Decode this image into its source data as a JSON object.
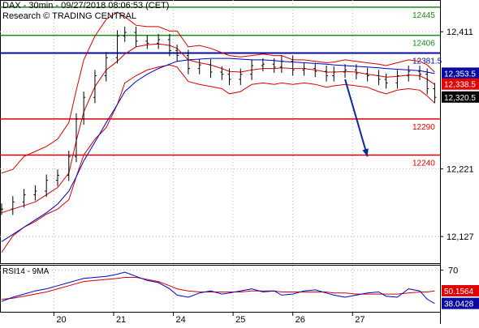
{
  "header": {
    "line1": "DAX - 30min - 09/27/2018 08:06:53 (CET)",
    "line2": "Research © TRADING CENTRAL"
  },
  "colors": {
    "price": "#000000",
    "band": "#d40000",
    "ma_fast": "#d40000",
    "ma_slow": "#0000c8",
    "green_level": "#1a8a1a",
    "blue_level": "#0a0aa0",
    "red_level": "#e00000",
    "arrow": "#0a2a9a",
    "grid": "#b8b8b8",
    "last_badge": "#000000"
  },
  "chart_data": [
    {
      "type": "line",
      "title": "DAX - 30min",
      "ylim": [
        12090,
        12455
      ],
      "x": [
        0,
        3,
        6,
        9,
        12,
        15,
        18,
        20,
        22,
        25,
        28,
        31,
        33,
        36,
        39,
        42,
        45,
        47,
        50,
        53,
        56,
        59,
        61,
        64,
        67,
        70,
        73,
        75,
        78,
        81,
        84,
        87,
        89,
        92,
        95,
        98,
        101,
        103,
        106,
        109,
        112,
        114,
        116
      ],
      "x_ticks": [
        {
          "at": 14,
          "label": "20"
        },
        {
          "at": 30,
          "label": "21"
        },
        {
          "at": 46,
          "label": "24"
        },
        {
          "at": 62,
          "label": "25"
        },
        {
          "at": 78,
          "label": "26"
        },
        {
          "at": 94,
          "label": "27"
        }
      ],
      "y_ticks": [
        12411,
        12221,
        12127
      ],
      "levels": [
        {
          "value": 12445,
          "label": "12445",
          "kind": "green"
        },
        {
          "value": 12406,
          "label": "12406",
          "kind": "green"
        },
        {
          "value": 12381.5,
          "label": "12381.5",
          "kind": "blue"
        },
        {
          "value": 12290,
          "label": "12290",
          "kind": "red"
        },
        {
          "value": 12240,
          "label": "12240",
          "kind": "red"
        }
      ],
      "right_tags": [
        {
          "value": 12353.5,
          "label": "12,353.5",
          "kind": "blue"
        },
        {
          "value": 12338.5,
          "label": "12,338.5",
          "kind": "red"
        },
        {
          "value": 12320.5,
          "label": "12,320.5",
          "kind": "last"
        }
      ],
      "series": [
        {
          "key": "price",
          "values": [
            12165,
            12175,
            12185,
            12190,
            12205,
            12212,
            12238,
            12290,
            12320,
            12350,
            12375,
            12405,
            12410,
            12398,
            12395,
            12400,
            12385,
            12378,
            12360,
            12365,
            12355,
            12352,
            12345,
            12352,
            12364,
            12366,
            12362,
            12370,
            12358,
            12360,
            12356,
            12350,
            12355,
            12358,
            12353,
            12350,
            12345,
            12340,
            12350,
            12356,
            12352,
            12332,
            12320
          ]
        },
        {
          "key": "upper_band",
          "values": [
            12215,
            12220,
            12238,
            12245,
            12252,
            12262,
            12285,
            12330,
            12372,
            12405,
            12428,
            12438,
            12432,
            12420,
            12418,
            12418,
            12412,
            12412,
            12390,
            12392,
            12388,
            12382,
            12378,
            12376,
            12378,
            12380,
            12378,
            12378,
            12372,
            12372,
            12370,
            12368,
            12369,
            12372,
            12370,
            12368,
            12366,
            12364,
            12368,
            12372,
            12370,
            12365,
            12355
          ]
        },
        {
          "key": "lower_band",
          "values": [
            12105,
            12128,
            12140,
            12148,
            12158,
            12165,
            12178,
            12210,
            12240,
            12262,
            12278,
            12310,
            12340,
            12350,
            12358,
            12362,
            12365,
            12362,
            12342,
            12338,
            12335,
            12332,
            12325,
            12328,
            12338,
            12340,
            12338,
            12340,
            12338,
            12340,
            12338,
            12334,
            12336,
            12338,
            12336,
            12334,
            12328,
            12325,
            12330,
            12332,
            12330,
            12322,
            12312
          ]
        },
        {
          "key": "ma_fast",
          "values": [
            12160,
            12165,
            12170,
            12175,
            12185,
            12195,
            12215,
            12260,
            12300,
            12335,
            12358,
            12370,
            12380,
            12390,
            12393,
            12394,
            12392,
            12388,
            12372,
            12368,
            12365,
            12360,
            12356,
            12355,
            12358,
            12360,
            12360,
            12361,
            12360,
            12360,
            12358,
            12355,
            12355,
            12356,
            12355,
            12352,
            12350,
            12348,
            12349,
            12351,
            12350,
            12345,
            12338
          ]
        },
        {
          "key": "ma_slow",
          "values": [
            12120,
            12130,
            12140,
            12150,
            12160,
            12172,
            12190,
            12210,
            12232,
            12258,
            12285,
            12310,
            12328,
            12342,
            12352,
            12360,
            12366,
            12370,
            12372,
            12373,
            12374,
            12374,
            12374,
            12373,
            12372,
            12372,
            12371,
            12370,
            12369,
            12368,
            12367,
            12366,
            12365,
            12364,
            12363,
            12362,
            12361,
            12360,
            12359,
            12358,
            12357,
            12355,
            12353
          ]
        }
      ],
      "arrow": {
        "from": [
          92,
          12345
        ],
        "to": [
          98,
          12238
        ]
      }
    },
    {
      "type": "line",
      "title": "RSI14 - 9MA",
      "ylim": [
        30,
        75
      ],
      "y_ticks": [
        70
      ],
      "x": [
        0,
        3,
        6,
        9,
        12,
        15,
        18,
        20,
        22,
        25,
        28,
        31,
        33,
        36,
        39,
        42,
        45,
        47,
        50,
        53,
        56,
        59,
        61,
        64,
        67,
        70,
        73,
        75,
        78,
        81,
        84,
        87,
        89,
        92,
        95,
        98,
        101,
        103,
        106,
        109,
        112,
        114,
        116
      ],
      "right_tags": [
        {
          "value": 50.1564,
          "label": "50.1564",
          "kind": "red"
        },
        {
          "value": 38.0428,
          "label": "38.0428",
          "kind": "blue"
        }
      ],
      "series": [
        {
          "key": "rsi",
          "values": [
            40,
            44,
            47,
            50,
            52,
            55,
            58,
            60,
            62,
            63,
            64,
            66,
            68,
            64,
            60,
            58,
            52,
            46,
            44,
            48,
            50,
            47,
            48,
            50,
            52,
            49,
            50,
            46,
            47,
            50,
            51,
            48,
            46,
            44,
            46,
            48,
            49,
            45,
            44,
            52,
            50,
            42,
            38
          ]
        },
        {
          "key": "rsi_ma",
          "values": [
            42,
            43,
            45,
            47,
            49,
            52,
            55,
            57,
            59,
            60,
            61,
            62,
            63,
            63,
            61,
            59,
            55,
            52,
            50,
            49,
            49,
            49,
            49,
            49,
            50,
            50,
            50,
            49,
            49,
            49,
            49,
            49,
            48,
            48,
            47,
            47,
            47,
            47,
            47,
            48,
            49,
            49,
            50
          ]
        }
      ]
    }
  ]
}
